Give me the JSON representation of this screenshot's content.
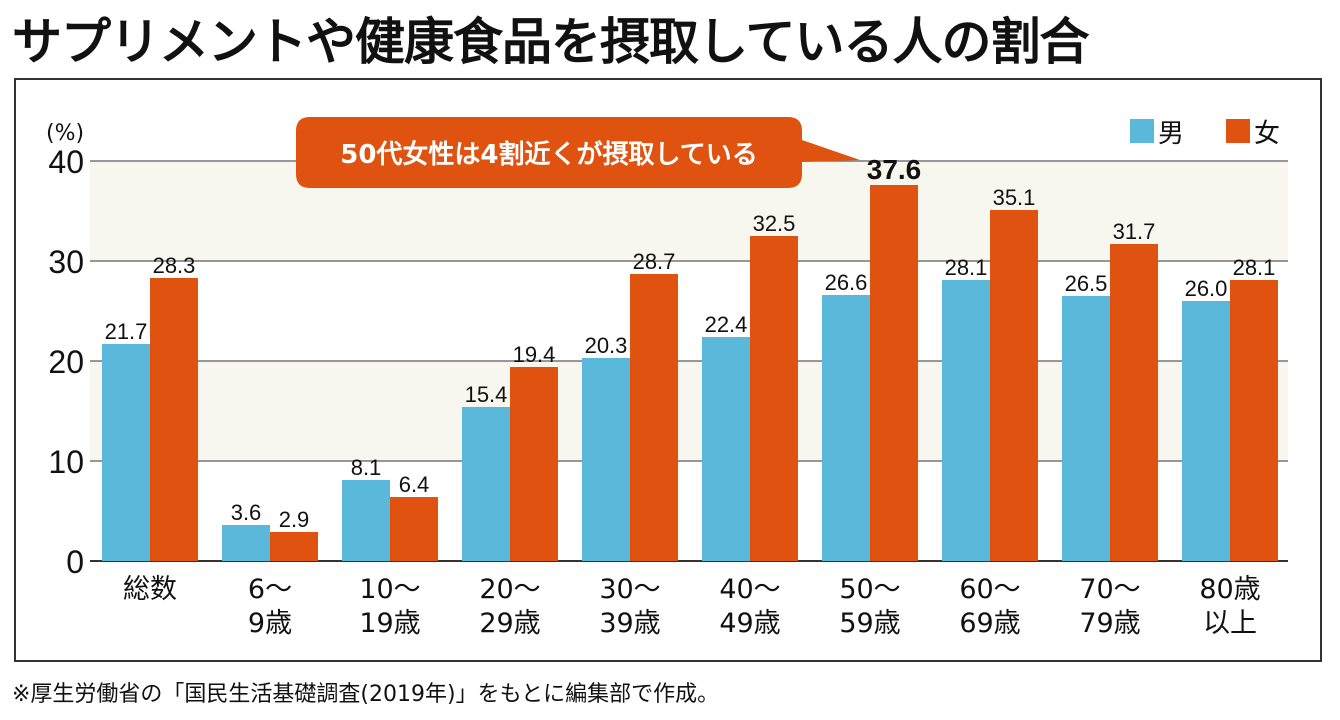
{
  "title": "サプリメントや健康食品を摂取している人の割合",
  "footnote": "※厚生労働省の「国民生活基礎調査(2019年)」をもとに編集部で作成。",
  "colors": {
    "male": "#5ab8db",
    "female": "#e0520f",
    "band": "#f8f7ef",
    "callout": "#e0520f"
  },
  "chart_data": {
    "type": "bar",
    "ylabel": "(%)",
    "ylim": [
      0,
      40
    ],
    "yticks": [
      0,
      10,
      20,
      30,
      40
    ],
    "grid": true,
    "legend": "top-right",
    "categories": [
      [
        "総数"
      ],
      [
        "6〜",
        "9歳"
      ],
      [
        "10〜",
        "19歳"
      ],
      [
        "20〜",
        "29歳"
      ],
      [
        "30〜",
        "39歳"
      ],
      [
        "40〜",
        "49歳"
      ],
      [
        "50〜",
        "59歳"
      ],
      [
        "60〜",
        "69歳"
      ],
      [
        "70〜",
        "79歳"
      ],
      [
        "80歳",
        "以上"
      ]
    ],
    "series": [
      {
        "name": "男",
        "values": [
          21.7,
          3.6,
          8.1,
          15.4,
          20.3,
          22.4,
          26.6,
          28.1,
          26.5,
          26.0
        ]
      },
      {
        "name": "女",
        "values": [
          28.3,
          2.9,
          6.4,
          19.4,
          28.7,
          32.5,
          37.6,
          35.1,
          31.7,
          28.1
        ]
      }
    ],
    "annotation": "50代女性は4割近くが摂取している"
  }
}
